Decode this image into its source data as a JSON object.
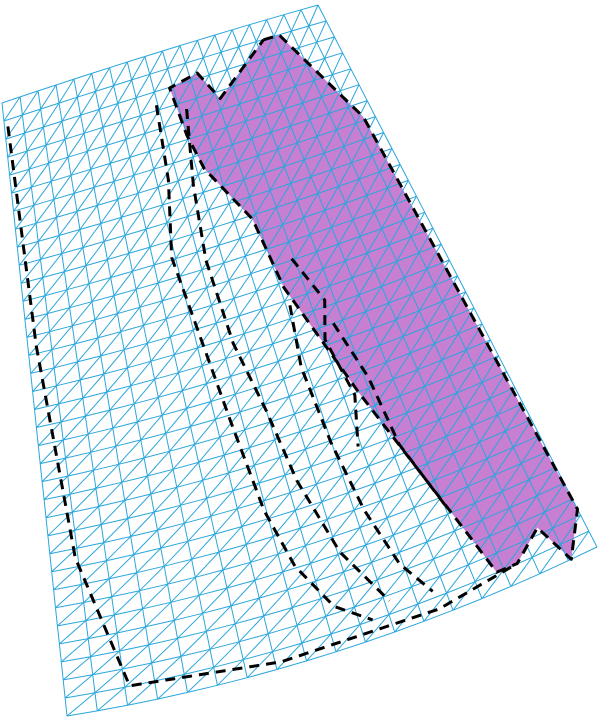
{
  "mesh": {
    "columns": 18,
    "rows": 34,
    "line_color": "#2aa6dc",
    "fill_color": "#c77fd2",
    "boundary_color": "#000000"
  }
}
